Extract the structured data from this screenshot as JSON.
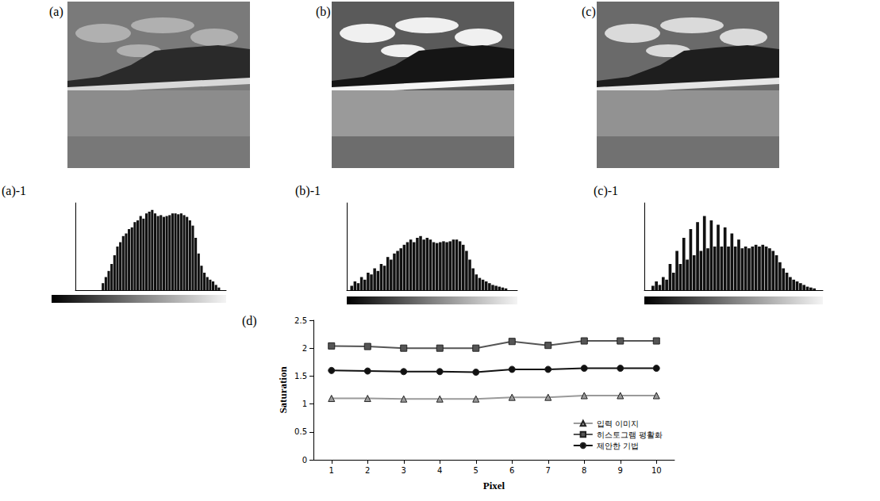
{
  "photos": [
    {
      "label": "(a)"
    },
    {
      "label": "(b)"
    },
    {
      "label": "(c)"
    }
  ],
  "chart_data": [
    {
      "type": "bar",
      "label": "(a)-1",
      "color": "#111111",
      "tick_labels": false,
      "ylim": [
        0,
        100
      ],
      "x": [
        0,
        5,
        10,
        15,
        20,
        25,
        30,
        35,
        40,
        45,
        50,
        55,
        60,
        65,
        70,
        75,
        80,
        85,
        90,
        95,
        100,
        105,
        110,
        115,
        120,
        125,
        130,
        135,
        140,
        145,
        150,
        155,
        160,
        165,
        170,
        175,
        180,
        185,
        190,
        195,
        200,
        205,
        210,
        215,
        220,
        225,
        230,
        235,
        240,
        245,
        250,
        255
      ],
      "values": [
        0,
        0,
        0,
        0,
        0,
        0,
        0,
        0,
        0,
        8,
        15,
        22,
        30,
        40,
        50,
        55,
        62,
        65,
        70,
        72,
        78,
        80,
        85,
        82,
        88,
        90,
        92,
        88,
        85,
        86,
        84,
        85,
        86,
        88,
        88,
        87,
        88,
        86,
        84,
        80,
        74,
        60,
        42,
        28,
        20,
        15,
        12,
        10,
        6,
        3,
        0,
        0
      ]
    },
    {
      "type": "bar",
      "label": "(b)-1",
      "color": "#111111",
      "tick_labels": false,
      "ylim": [
        0,
        100
      ],
      "x": [
        0,
        5,
        10,
        15,
        20,
        25,
        30,
        35,
        40,
        45,
        50,
        55,
        60,
        65,
        70,
        75,
        80,
        85,
        90,
        95,
        100,
        105,
        110,
        115,
        120,
        125,
        130,
        135,
        140,
        145,
        150,
        155,
        160,
        165,
        170,
        175,
        180,
        185,
        190,
        195,
        200,
        205,
        210,
        215,
        220,
        225,
        230,
        235,
        240,
        245,
        250,
        255
      ],
      "values": [
        0,
        5,
        10,
        8,
        15,
        12,
        20,
        18,
        25,
        22,
        30,
        28,
        38,
        35,
        42,
        45,
        48,
        52,
        55,
        58,
        55,
        60,
        62,
        58,
        60,
        58,
        55,
        54,
        55,
        56,
        55,
        56,
        58,
        58,
        56,
        52,
        45,
        35,
        25,
        18,
        14,
        12,
        10,
        8,
        6,
        5,
        4,
        3,
        2,
        0,
        0,
        0
      ]
    },
    {
      "type": "bar",
      "label": "(c)-1",
      "color": "#111111",
      "tick_labels": false,
      "ylim": [
        0,
        100
      ],
      "x": [
        0,
        5,
        10,
        15,
        20,
        25,
        30,
        35,
        40,
        45,
        50,
        55,
        60,
        65,
        70,
        75,
        80,
        85,
        90,
        95,
        100,
        105,
        110,
        115,
        120,
        125,
        130,
        135,
        140,
        145,
        150,
        155,
        160,
        165,
        170,
        175,
        180,
        185,
        190,
        195,
        200,
        205,
        210,
        215,
        220,
        225,
        230,
        235,
        240,
        245,
        250,
        255
      ],
      "values": [
        0,
        0,
        5,
        10,
        6,
        15,
        12,
        30,
        20,
        45,
        30,
        60,
        35,
        70,
        40,
        78,
        45,
        85,
        48,
        80,
        50,
        75,
        50,
        72,
        50,
        65,
        50,
        58,
        48,
        50,
        48,
        50,
        52,
        50,
        52,
        50,
        48,
        45,
        40,
        32,
        25,
        20,
        15,
        12,
        10,
        8,
        6,
        4,
        3,
        2,
        0,
        0
      ]
    },
    {
      "type": "line",
      "label": "(d)",
      "grid": false,
      "legend": "bottom-right",
      "x_label": "Pixel",
      "y_label": "Saturation",
      "categories": [
        "1",
        "2",
        "3",
        "4",
        "5",
        "6",
        "7",
        "8",
        "9",
        "10"
      ],
      "ylim": [
        0,
        2.5
      ],
      "yticks": [
        0,
        0.5,
        1,
        1.5,
        2,
        2.5
      ],
      "series": [
        {
          "name": "입력 이미지",
          "color": "#9a9a9a",
          "marker": "triangle",
          "values": [
            1.1,
            1.1,
            1.09,
            1.09,
            1.09,
            1.12,
            1.12,
            1.15,
            1.15,
            1.15
          ]
        },
        {
          "name": "히스토그램 평활화",
          "color": "#555555",
          "marker": "square",
          "values": [
            2.04,
            2.03,
            2.0,
            2.0,
            2.0,
            2.12,
            2.05,
            2.13,
            2.13,
            2.13
          ]
        },
        {
          "name": "제안한 기법",
          "color": "#111111",
          "marker": "circle",
          "values": [
            1.6,
            1.59,
            1.58,
            1.58,
            1.57,
            1.62,
            1.62,
            1.64,
            1.64,
            1.64
          ]
        }
      ]
    }
  ]
}
